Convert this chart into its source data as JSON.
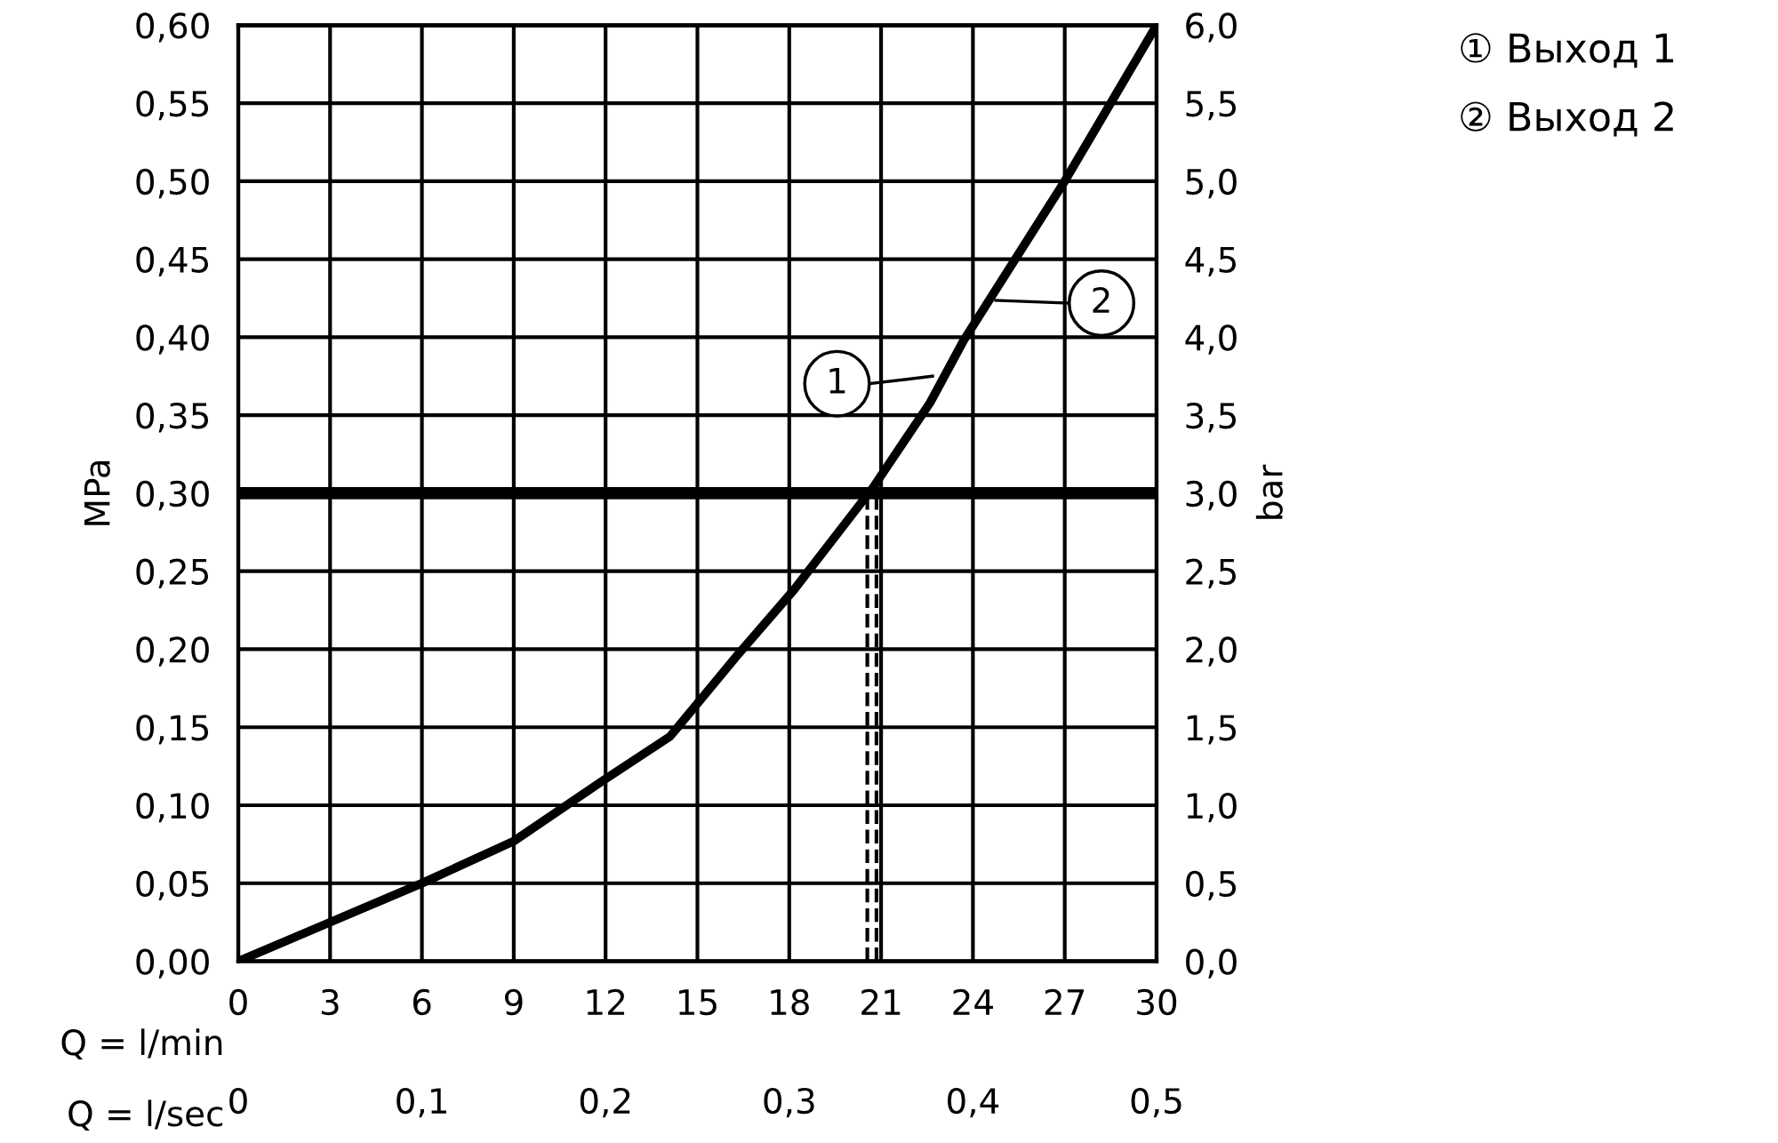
{
  "chart_data": {
    "type": "line",
    "xlabel": "Q = l/min",
    "x2label": "Q = l/sec",
    "ylabel": "MPa",
    "y2label": "bar",
    "x": [
      0,
      3,
      6,
      9,
      11.85,
      14.1,
      16.3,
      18.15,
      20.75,
      22.6,
      23.7,
      27,
      30
    ],
    "series": [
      {
        "color": "#000000",
        "values": [
          0,
          0.025,
          0.05,
          0.077,
          0.115,
          0.144,
          0.196,
          0.238,
          0.304,
          0.358,
          0.398,
          0.5,
          0.6
        ]
      }
    ],
    "xlim": [
      0,
      30
    ],
    "xticks": [
      0,
      3,
      6,
      9,
      12,
      15,
      18,
      21,
      24,
      27,
      30
    ],
    "x2lim": [
      0,
      0.5
    ],
    "x2ticks": [
      0,
      {
        "value": 0.1,
        "label": "0,1"
      },
      {
        "value": 0.2,
        "label": "0,2"
      },
      {
        "value": 0.3,
        "label": "0,3"
      },
      {
        "value": 0.4,
        "label": "0,4"
      },
      {
        "value": 0.5,
        "label": "0,5"
      }
    ],
    "ylim": [
      0,
      0.6
    ],
    "yticks": [
      {
        "value": 0,
        "label": "0,00"
      },
      {
        "value": 0.05,
        "label": "0,05"
      },
      {
        "value": 0.1,
        "label": "0,10"
      },
      {
        "value": 0.15,
        "label": "0,15"
      },
      {
        "value": 0.2,
        "label": "0,20"
      },
      {
        "value": 0.25,
        "label": "0,25"
      },
      {
        "value": 0.3,
        "label": "0,30"
      },
      {
        "value": 0.35,
        "label": "0,35"
      },
      {
        "value": 0.4,
        "label": "0,40"
      },
      {
        "value": 0.45,
        "label": "0,45"
      },
      {
        "value": 0.5,
        "label": "0,50"
      },
      {
        "value": 0.55,
        "label": "0,55"
      },
      {
        "value": 0.6,
        "label": "0,60"
      }
    ],
    "y2lim": [
      0,
      6
    ],
    "y2ticks": [
      {
        "value": 0,
        "label": "0,0"
      },
      {
        "value": 0.5,
        "label": "0,5"
      },
      {
        "value": 1,
        "label": "1,0"
      },
      {
        "value": 1.5,
        "label": "1,5"
      },
      {
        "value": 2,
        "label": "2,0"
      },
      {
        "value": 2.5,
        "label": "2,5"
      },
      {
        "value": 3,
        "label": "3,0"
      },
      {
        "value": 3.5,
        "label": "3,5"
      },
      {
        "value": 4,
        "label": "4,0"
      },
      {
        "value": 4.5,
        "label": "4,5"
      },
      {
        "value": 5,
        "label": "5,0"
      },
      {
        "value": 5.5,
        "label": "5,5"
      },
      {
        "value": 6,
        "label": "6,0"
      }
    ],
    "ref_lines": [
      {
        "axis": "y",
        "value": 0.3,
        "color": "#000000",
        "line_style": "solid"
      },
      {
        "axis": "x",
        "value": 20.55,
        "color": "#000000",
        "line_style": "dashed"
      },
      {
        "axis": "x",
        "value": 20.85,
        "color": "#000000",
        "line_style": "dashed"
      }
    ],
    "annotations": [
      "1",
      "2",
      "① Выход 1",
      "② Выход 2"
    ],
    "grid": true,
    "marker": "none",
    "line_style": "solid"
  }
}
